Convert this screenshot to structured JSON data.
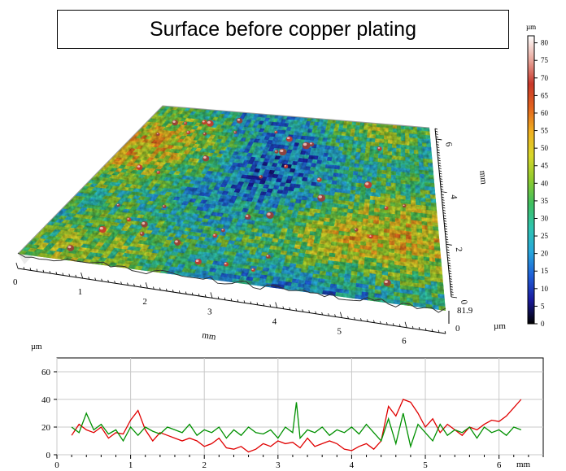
{
  "title": "Surface before copper plating",
  "chart_data": [
    {
      "type": "heatmap",
      "subtype": "3d-surface",
      "title": "Surface before copper plating",
      "x_label": "mm",
      "x_ticks": [
        "0",
        "1",
        "2",
        "3",
        "4",
        "5",
        "6"
      ],
      "y_label": "mm",
      "y_ticks": [
        "0",
        "2",
        "4",
        "6"
      ],
      "z_label": "µm",
      "z_top_tick": "81.9",
      "z_bottom_tick": "0",
      "colorbar": {
        "unit": "µm",
        "ticks": [
          "80",
          "75",
          "70",
          "65",
          "60",
          "55",
          "50",
          "45",
          "40",
          "35",
          "30",
          "25",
          "20",
          "15",
          "10",
          "5",
          "0"
        ],
        "range": [
          0,
          82
        ],
        "colors": [
          "#000000",
          "#1a1a9e",
          "#1f5fd8",
          "#27a7dc",
          "#2ec4b0",
          "#3fbf5f",
          "#8fcb2e",
          "#d8d72a",
          "#f0b020",
          "#e3641e",
          "#c8372a",
          "#e9a79c",
          "#ffffff"
        ]
      }
    },
    {
      "type": "line",
      "y_unit": "µm",
      "x_unit": "mm",
      "xlim": [
        0,
        6.6
      ],
      "ylim": [
        0,
        70
      ],
      "y_ticks": [
        "0",
        "20",
        "40",
        "60"
      ],
      "x_ticks": [
        "0",
        "1",
        "2",
        "3",
        "4",
        "5",
        "6"
      ],
      "grid": true,
      "series": [
        {
          "color": "#e00000",
          "x": [
            0.2,
            0.3,
            0.4,
            0.5,
            0.6,
            0.7,
            0.8,
            0.9,
            1.0,
            1.1,
            1.2,
            1.3,
            1.4,
            1.5,
            1.6,
            1.7,
            1.8,
            1.9,
            2.0,
            2.1,
            2.2,
            2.3,
            2.4,
            2.5,
            2.6,
            2.7,
            2.8,
            2.9,
            3.0,
            3.1,
            3.2,
            3.3,
            3.4,
            3.5,
            3.6,
            3.7,
            3.8,
            3.9,
            4.0,
            4.1,
            4.2,
            4.3,
            4.4,
            4.5,
            4.6,
            4.7,
            4.8,
            4.9,
            5.0,
            5.1,
            5.2,
            5.3,
            5.4,
            5.5,
            5.6,
            5.7,
            5.8,
            5.9,
            6.0,
            6.1,
            6.2,
            6.3
          ],
          "y": [
            14,
            22,
            18,
            16,
            20,
            12,
            16,
            15,
            25,
            32,
            18,
            10,
            16,
            14,
            12,
            10,
            12,
            10,
            6,
            8,
            12,
            5,
            4,
            6,
            2,
            4,
            8,
            6,
            10,
            8,
            9,
            5,
            12,
            6,
            8,
            10,
            8,
            4,
            3,
            6,
            8,
            4,
            10,
            35,
            28,
            40,
            38,
            30,
            20,
            26,
            16,
            22,
            18,
            14,
            20,
            18,
            22,
            25,
            24,
            28,
            34,
            40
          ]
        },
        {
          "color": "#009000",
          "x": [
            0.2,
            0.3,
            0.4,
            0.5,
            0.6,
            0.7,
            0.8,
            0.9,
            1.0,
            1.1,
            1.2,
            1.3,
            1.4,
            1.5,
            1.6,
            1.7,
            1.8,
            1.9,
            2.0,
            2.1,
            2.2,
            2.3,
            2.4,
            2.5,
            2.6,
            2.7,
            2.8,
            2.9,
            3.0,
            3.1,
            3.2,
            3.25,
            3.3,
            3.4,
            3.5,
            3.6,
            3.7,
            3.8,
            3.9,
            4.0,
            4.1,
            4.2,
            4.3,
            4.4,
            4.5,
            4.6,
            4.7,
            4.8,
            4.9,
            5.0,
            5.1,
            5.2,
            5.3,
            5.4,
            5.5,
            5.6,
            5.7,
            5.8,
            5.9,
            6.0,
            6.1,
            6.2,
            6.3
          ],
          "y": [
            20,
            16,
            30,
            18,
            22,
            15,
            18,
            10,
            20,
            14,
            20,
            17,
            15,
            20,
            18,
            16,
            22,
            14,
            18,
            16,
            20,
            12,
            18,
            14,
            20,
            16,
            15,
            18,
            12,
            20,
            16,
            38,
            12,
            18,
            16,
            20,
            14,
            18,
            16,
            20,
            15,
            22,
            16,
            10,
            26,
            8,
            30,
            6,
            22,
            16,
            10,
            22,
            14,
            18,
            16,
            20,
            12,
            20,
            16,
            18,
            14,
            20,
            18
          ]
        }
      ]
    }
  ]
}
